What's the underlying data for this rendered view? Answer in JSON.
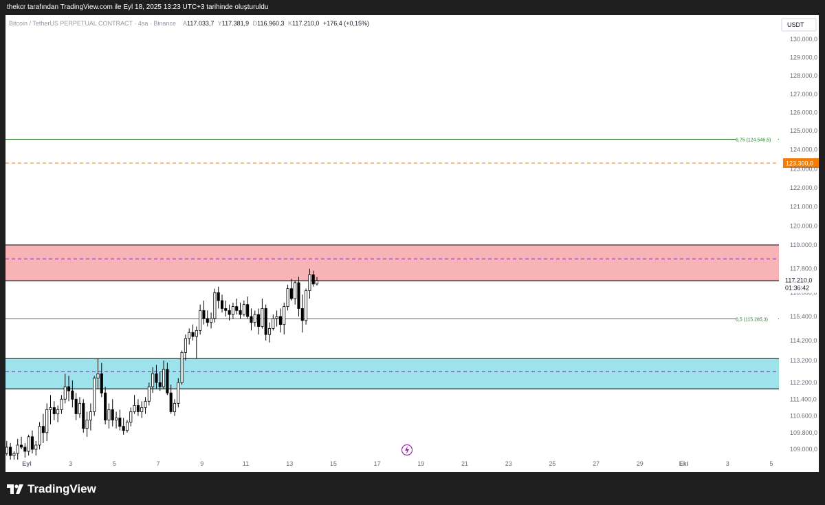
{
  "header": {
    "caption": "thekcr tarafından TradingView.com ile Eyl 18, 2025 13:23 UTC+3 tarihinde oluşturuldu"
  },
  "legend": {
    "symbol": "Bitcoin / TetherUS PERPETUAL CONTRACT · 4sa · Binance",
    "o_label": "A",
    "o": "117.033,7",
    "h_label": "Y",
    "h": "117.381,9",
    "l_label": "D",
    "l": "116.960,3",
    "c_label": "K",
    "c": "117.210,0",
    "change": "+176,4 (+0,15%)"
  },
  "currency": "USDT",
  "footer": {
    "brand": "TradingView"
  },
  "colors": {
    "up_body": "#ffffff",
    "down_body": "#000000",
    "candle_outline": "#000000",
    "supply_zone": "#f8b3b7",
    "demand_zone": "#9ee3ec",
    "fib_line": "#2e7d32",
    "alert_line": "#f57c00",
    "zone_mid": "#7b1fa2",
    "axis_text": "#6a6d78"
  },
  "chart_data": {
    "type": "candlestick",
    "ylim": [
      108500,
      131000
    ],
    "y_ticks": [
      {
        "v": 109000,
        "t": "109.000,0"
      },
      {
        "v": 109800,
        "t": "109.800,0"
      },
      {
        "v": 110600,
        "t": "110.600,0"
      },
      {
        "v": 111400,
        "t": "111.400,0"
      },
      {
        "v": 112200,
        "t": "112.200,0"
      },
      {
        "v": 113200,
        "t": "113.200,0"
      },
      {
        "v": 114200,
        "t": "114.200,0"
      },
      {
        "v": 115400,
        "t": "115.400,0"
      },
      {
        "v": 116600,
        "t": "116.600,0"
      },
      {
        "v": 117800,
        "t": "117.800,0"
      },
      {
        "v": 119000,
        "t": "119.000,0"
      },
      {
        "v": 120000,
        "t": "120.000,0"
      },
      {
        "v": 121000,
        "t": "121.000,0"
      },
      {
        "v": 122000,
        "t": "122.000,0"
      },
      {
        "v": 123000,
        "t": "123.000,0"
      },
      {
        "v": 124000,
        "t": "124.000,0"
      },
      {
        "v": 125000,
        "t": "125.000,0"
      },
      {
        "v": 126000,
        "t": "126.000,0"
      },
      {
        "v": 127000,
        "t": "127.000,0"
      },
      {
        "v": 128000,
        "t": "128.000,0"
      },
      {
        "v": 129000,
        "t": "129.000,0"
      },
      {
        "v": 130000,
        "t": "130.000,0"
      }
    ],
    "x_ticks": [
      {
        "d": 0,
        "t": "Eyl",
        "bold": true
      },
      {
        "d": 2,
        "t": "3"
      },
      {
        "d": 4,
        "t": "5"
      },
      {
        "d": 6,
        "t": "7"
      },
      {
        "d": 8,
        "t": "9"
      },
      {
        "d": 10,
        "t": "11"
      },
      {
        "d": 12,
        "t": "13"
      },
      {
        "d": 14,
        "t": "15"
      },
      {
        "d": 16,
        "t": "17"
      },
      {
        "d": 18,
        "t": "19"
      },
      {
        "d": 20,
        "t": "21"
      },
      {
        "d": 22,
        "t": "23"
      },
      {
        "d": 24,
        "t": "25"
      },
      {
        "d": 26,
        "t": "27"
      },
      {
        "d": 28,
        "t": "29"
      },
      {
        "d": 30,
        "t": "Eki",
        "bold": true
      },
      {
        "d": 32,
        "t": "3"
      },
      {
        "d": 34,
        "t": "5"
      }
    ],
    "candles_per_day": 6,
    "first_candle_day": -1.0,
    "candles": [
      [
        108800,
        109400,
        108700,
        109100
      ],
      [
        109100,
        109300,
        108500,
        108700
      ],
      [
        108700,
        108900,
        108500,
        108800
      ],
      [
        108800,
        109500,
        108500,
        109200
      ],
      [
        109200,
        109600,
        109000,
        109100
      ],
      [
        109100,
        109300,
        108600,
        108900
      ],
      [
        108900,
        109700,
        108700,
        109600
      ],
      [
        109600,
        109900,
        108800,
        109000
      ],
      [
        109000,
        109400,
        108700,
        109200
      ],
      [
        109200,
        110300,
        109000,
        110100
      ],
      [
        110100,
        110700,
        109300,
        109800
      ],
      [
        109800,
        111200,
        109400,
        110900
      ],
      [
        110900,
        111600,
        110200,
        111000
      ],
      [
        111000,
        111300,
        110400,
        110700
      ],
      [
        110700,
        111100,
        110300,
        110900
      ],
      [
        110900,
        111600,
        110700,
        111400
      ],
      [
        111400,
        112600,
        111200,
        112000
      ],
      [
        112000,
        112500,
        111300,
        111800
      ],
      [
        111800,
        112300,
        111000,
        111400
      ],
      [
        111400,
        111700,
        110400,
        110700
      ],
      [
        110700,
        111500,
        110500,
        111200
      ],
      [
        111200,
        111400,
        109800,
        110000
      ],
      [
        110000,
        110800,
        109600,
        110400
      ],
      [
        110400,
        111200,
        109900,
        110800
      ],
      [
        110800,
        112500,
        110600,
        112400
      ],
      [
        112400,
        113300,
        111900,
        112600
      ],
      [
        112600,
        113100,
        111500,
        111700
      ],
      [
        111700,
        112000,
        110200,
        110400
      ],
      [
        110400,
        111200,
        110000,
        110900
      ],
      [
        110900,
        111400,
        110100,
        110400
      ],
      [
        110400,
        110800,
        110000,
        110500
      ],
      [
        110500,
        110900,
        109900,
        110100
      ],
      [
        110100,
        110500,
        109700,
        109900
      ],
      [
        109900,
        110400,
        109800,
        110300
      ],
      [
        110300,
        111000,
        110100,
        110800
      ],
      [
        110800,
        111600,
        110700,
        111100
      ],
      [
        111100,
        111400,
        110600,
        110800
      ],
      [
        110800,
        111300,
        110500,
        111000
      ],
      [
        111000,
        111500,
        110700,
        111300
      ],
      [
        111300,
        112200,
        111100,
        112000
      ],
      [
        112000,
        112900,
        111700,
        112600
      ],
      [
        112600,
        113000,
        111900,
        112200
      ],
      [
        112200,
        112700,
        111800,
        112000
      ],
      [
        112000,
        113200,
        111900,
        112800
      ],
      [
        112800,
        113100,
        111600,
        111700
      ],
      [
        111700,
        112100,
        110700,
        110800
      ],
      [
        110800,
        111400,
        110600,
        111200
      ],
      [
        111200,
        112400,
        111000,
        112200
      ],
      [
        112200,
        113700,
        112100,
        113600
      ],
      [
        113600,
        114500,
        113200,
        114300
      ],
      [
        114300,
        114800,
        114000,
        114600
      ],
      [
        114600,
        115000,
        114200,
        114400
      ],
      [
        114400,
        114900,
        113300,
        114700
      ],
      [
        114700,
        116000,
        114500,
        115700
      ],
      [
        115700,
        116200,
        115000,
        115300
      ],
      [
        115300,
        115700,
        114900,
        115100
      ],
      [
        115100,
        115600,
        114800,
        115300
      ],
      [
        115300,
        116800,
        115100,
        116600
      ],
      [
        116600,
        116900,
        115800,
        116200
      ],
      [
        116200,
        116500,
        115600,
        115800
      ],
      [
        115800,
        116200,
        115400,
        115700
      ],
      [
        115700,
        116000,
        115200,
        115500
      ],
      [
        115500,
        116100,
        115300,
        115900
      ],
      [
        115900,
        116300,
        115500,
        115700
      ],
      [
        115700,
        116100,
        115300,
        115500
      ],
      [
        115500,
        116200,
        115400,
        116000
      ],
      [
        116000,
        116400,
        115300,
        115400
      ],
      [
        115400,
        115800,
        114700,
        115100
      ],
      [
        115100,
        115700,
        114900,
        115500
      ],
      [
        115500,
        115800,
        114500,
        114900
      ],
      [
        114900,
        116300,
        114800,
        115800
      ],
      [
        115800,
        116000,
        114200,
        114500
      ],
      [
        114500,
        115100,
        114100,
        114800
      ],
      [
        114800,
        115500,
        114700,
        115300
      ],
      [
        115300,
        115700,
        114900,
        115400
      ],
      [
        115400,
        115800,
        114600,
        115000
      ],
      [
        115000,
        116100,
        114500,
        115900
      ],
      [
        115900,
        117000,
        115700,
        116800
      ],
      [
        116800,
        117300,
        116200,
        116300
      ],
      [
        116300,
        117200,
        116000,
        117100
      ],
      [
        117100,
        117400,
        115400,
        115800
      ],
      [
        115800,
        116500,
        114600,
        115200
      ],
      [
        115200,
        116800,
        115000,
        116700
      ],
      [
        116700,
        117800,
        116300,
        117500
      ],
      [
        117500,
        117700,
        116900,
        117033.7
      ],
      [
        117033.7,
        117381.9,
        116960.3,
        117210
      ]
    ]
  },
  "zones": [
    {
      "name": "supply",
      "top": 119000,
      "bottom": 117200,
      "mid": 118300
    },
    {
      "name": "demand",
      "top": 113300,
      "bottom": 111900,
      "mid": 112700
    }
  ],
  "levels": [
    {
      "price": 124546.5,
      "label": "6,75 (124.546,5)",
      "style": "fib"
    },
    {
      "price": 115285.3,
      "label": "6,5 (115.285,3)",
      "style": "fib"
    },
    {
      "price": 123300,
      "label": "123.300,0",
      "style": "alert"
    }
  ],
  "last_price": {
    "price": 117210,
    "label": "117.210,0",
    "countdown": "01:36:42"
  }
}
